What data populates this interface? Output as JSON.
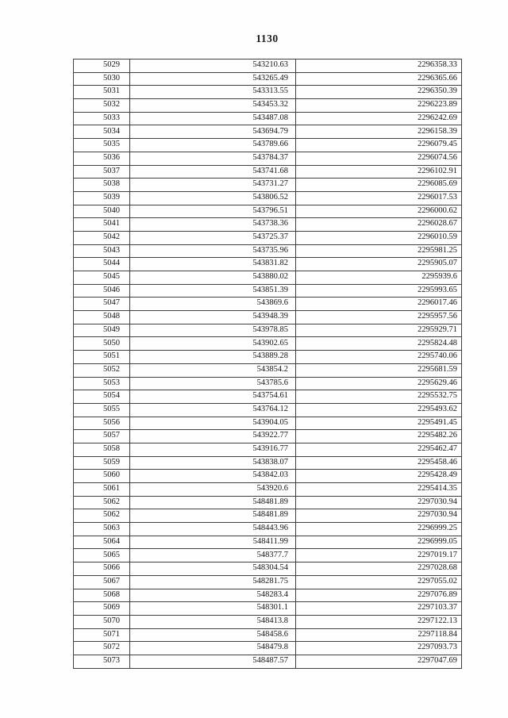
{
  "page": {
    "page_number": "1130"
  },
  "table": {
    "rows": [
      [
        "5029",
        "543210.63",
        "2296358.33"
      ],
      [
        "5030",
        "543265.49",
        "2296365.66"
      ],
      [
        "5031",
        "543313.55",
        "2296350.39"
      ],
      [
        "5032",
        "543453.32",
        "2296223.89"
      ],
      [
        "5033",
        "543487.08",
        "2296242.69"
      ],
      [
        "5034",
        "543694.79",
        "2296158.39"
      ],
      [
        "5035",
        "543789.66",
        "2296079.45"
      ],
      [
        "5036",
        "543784.37",
        "2296074.56"
      ],
      [
        "5037",
        "543741.68",
        "2296102.91"
      ],
      [
        "5038",
        "543731.27",
        "2296085.69"
      ],
      [
        "5039",
        "543806.52",
        "2296017.53"
      ],
      [
        "5040",
        "543796.51",
        "2296000.62"
      ],
      [
        "5041",
        "543738.36",
        "2296028.67"
      ],
      [
        "5042",
        "543725.37",
        "2296010.59"
      ],
      [
        "5043",
        "543735.96",
        "2295981.25"
      ],
      [
        "5044",
        "543831.82",
        "2295905.07"
      ],
      [
        "5045",
        "543880.02",
        "2295939.6"
      ],
      [
        "5046",
        "543851.39",
        "2295993.65"
      ],
      [
        "5047",
        "543869.6",
        "2296017.46"
      ],
      [
        "5048",
        "543948.39",
        "2295957.56"
      ],
      [
        "5049",
        "543978.85",
        "2295929.71"
      ],
      [
        "5050",
        "543902.65",
        "2295824.48"
      ],
      [
        "5051",
        "543889.28",
        "2295740.06"
      ],
      [
        "5052",
        "543854.2",
        "2295681.59"
      ],
      [
        "5053",
        "543785.6",
        "2295629.46"
      ],
      [
        "5054",
        "543754.61",
        "2295532.75"
      ],
      [
        "5055",
        "543764.12",
        "2295493.62"
      ],
      [
        "5056",
        "543904.05",
        "2295491.45"
      ],
      [
        "5057",
        "543922.77",
        "2295482.26"
      ],
      [
        "5058",
        "543916.77",
        "2295462.47"
      ],
      [
        "5059",
        "543838.07",
        "2295458.46"
      ],
      [
        "5060",
        "543842.03",
        "2295428.49"
      ],
      [
        "5061",
        "543920.6",
        "2295414.35"
      ],
      [
        "5062",
        "548481.89",
        "2297030.94"
      ],
      [
        "5062",
        "548481.89",
        "2297030.94"
      ],
      [
        "5063",
        "548443.96",
        "2296999.25"
      ],
      [
        "5064",
        "548411.99",
        "2296999.05"
      ],
      [
        "5065",
        "548377.7",
        "2297019.17"
      ],
      [
        "5066",
        "548304.54",
        "2297028.68"
      ],
      [
        "5067",
        "548281.75",
        "2297055.02"
      ],
      [
        "5068",
        "548283.4",
        "2297076.89"
      ],
      [
        "5069",
        "548301.1",
        "2297103.37"
      ],
      [
        "5070",
        "548413.8",
        "2297122.13"
      ],
      [
        "5071",
        "548458.6",
        "2297118.84"
      ],
      [
        "5072",
        "548479.8",
        "2297093.73"
      ],
      [
        "5073",
        "548487.57",
        "2297047.69"
      ]
    ]
  }
}
